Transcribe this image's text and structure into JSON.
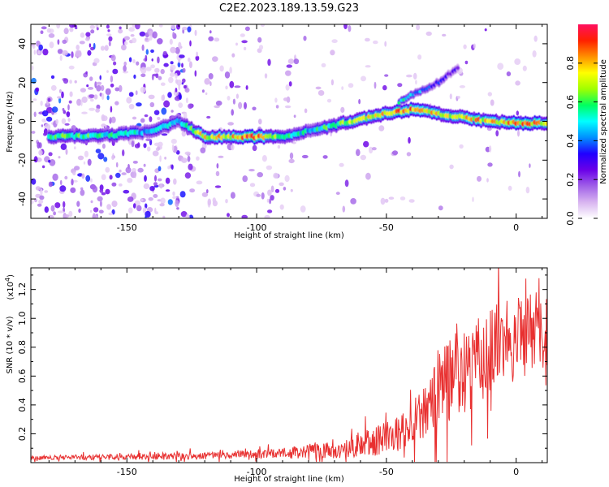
{
  "title": "C2E2.2023.189.13.59.G23",
  "chart_data": [
    {
      "type": "heatmap",
      "xlabel": "Height of straight line (km)",
      "ylabel": "Frequency (Hz)",
      "xlim": [
        -187,
        12
      ],
      "ylim": [
        -50,
        50
      ],
      "x_ticks": [
        -150,
        -100,
        -50,
        0
      ],
      "y_ticks": [
        -40,
        -20,
        0,
        20,
        40
      ],
      "colorbar": {
        "label": "Normalized spectral amplitude",
        "range": [
          0.0,
          1.0
        ],
        "ticks": [
          "0.0",
          "0.2",
          "0.4",
          "0.6",
          "0.8"
        ],
        "colors": [
          "#ffffff",
          "#d8b4f0",
          "#a060e8",
          "#6a00e8",
          "#2000ff",
          "#0090ff",
          "#00ffff",
          "#00ff60",
          "#a0ff00",
          "#ffff00",
          "#ff9000",
          "#ff2000",
          "#ff1060"
        ]
      },
      "ridge": [
        {
          "x": -180,
          "f": -8,
          "a": 0.6
        },
        {
          "x": -155,
          "f": -7,
          "a": 0.55
        },
        {
          "x": -140,
          "f": -5,
          "a": 0.45
        },
        {
          "x": -130,
          "f": 0,
          "a": 0.5
        },
        {
          "x": -120,
          "f": -8,
          "a": 0.75
        },
        {
          "x": -100,
          "f": -8,
          "a": 0.85
        },
        {
          "x": -90,
          "f": -8,
          "a": 0.6
        },
        {
          "x": -80,
          "f": -5,
          "a": 0.5
        },
        {
          "x": -70,
          "f": -2,
          "a": 0.6
        },
        {
          "x": -60,
          "f": 1,
          "a": 0.75
        },
        {
          "x": -50,
          "f": 4,
          "a": 0.8
        },
        {
          "x": -40,
          "f": 6,
          "a": 0.85
        },
        {
          "x": -30,
          "f": 4,
          "a": 0.75
        },
        {
          "x": -20,
          "f": 2,
          "a": 0.8
        },
        {
          "x": -10,
          "f": 0,
          "a": 0.75
        },
        {
          "x": 0,
          "f": -1,
          "a": 0.8
        },
        {
          "x": 12,
          "f": -1,
          "a": 0.8
        }
      ],
      "branch": [
        {
          "x": -45,
          "f": 10,
          "a": 0.55
        },
        {
          "x": -38,
          "f": 15,
          "a": 0.45
        },
        {
          "x": -30,
          "f": 20,
          "a": 0.35
        },
        {
          "x": -22,
          "f": 28,
          "a": 0.25
        }
      ]
    },
    {
      "type": "line",
      "xlabel": "Height of straight line (km)",
      "ylabel": "SNR (10 * v/v)",
      "y_multiplier": "(x10",
      "y_multiplier_exp": "4",
      "y_multiplier_close": ")",
      "xlim": [
        -187,
        12
      ],
      "ylim": [
        0,
        1.35
      ],
      "x_ticks": [
        -150,
        -100,
        -50,
        0
      ],
      "y_ticks": [
        0.2,
        0.4,
        0.6,
        0.8,
        1.0,
        1.2
      ],
      "color": "#e83030",
      "envelope": [
        {
          "x": -187,
          "base": 0.035,
          "amp": 0.02
        },
        {
          "x": -150,
          "base": 0.04,
          "amp": 0.03
        },
        {
          "x": -120,
          "base": 0.045,
          "amp": 0.035
        },
        {
          "x": -100,
          "base": 0.06,
          "amp": 0.04
        },
        {
          "x": -85,
          "base": 0.07,
          "amp": 0.06
        },
        {
          "x": -70,
          "base": 0.1,
          "amp": 0.1
        },
        {
          "x": -55,
          "base": 0.15,
          "amp": 0.15
        },
        {
          "x": -45,
          "base": 0.2,
          "amp": 0.18
        },
        {
          "x": -38,
          "base": 0.26,
          "amp": 0.22
        },
        {
          "x": -32,
          "base": 0.45,
          "amp": 0.4
        },
        {
          "x": -25,
          "base": 0.6,
          "amp": 0.45
        },
        {
          "x": -15,
          "base": 0.72,
          "amp": 0.45
        },
        {
          "x": -5,
          "base": 0.8,
          "amp": 0.45
        },
        {
          "x": 5,
          "base": 0.9,
          "amp": 0.4
        },
        {
          "x": 12,
          "base": 0.95,
          "amp": 0.4
        }
      ]
    }
  ]
}
